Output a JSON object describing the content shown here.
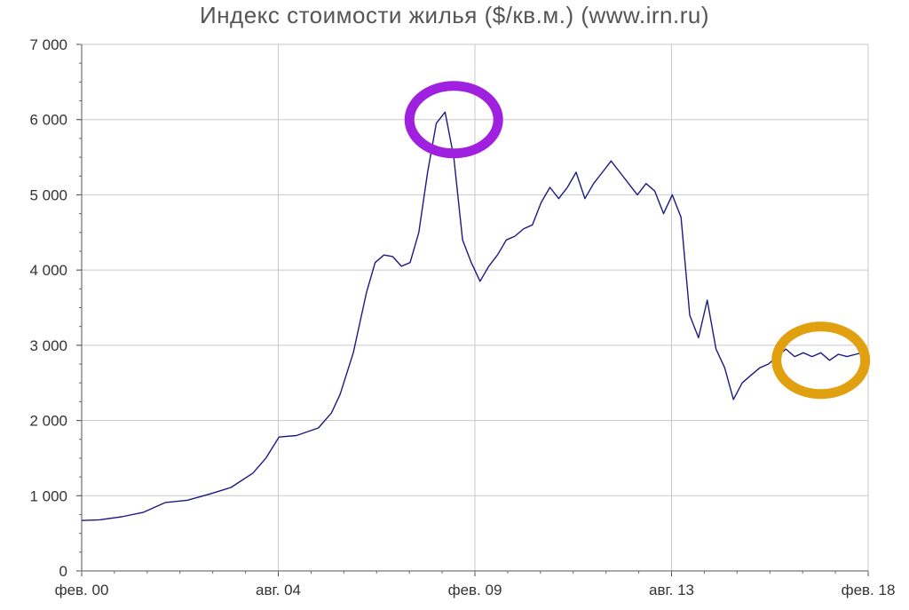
{
  "chart_data": {
    "type": "line",
    "title": "Индекс стоимости жилья ($/кв.м.) (www.irn.ru)",
    "xlabel": "",
    "ylabel": "",
    "ylim": [
      0,
      7000
    ],
    "y_ticks": [
      0,
      1000,
      2000,
      3000,
      4000,
      5000,
      6000,
      7000
    ],
    "y_tick_labels": [
      "0",
      "1 000",
      "2 000",
      "3 000",
      "4 000",
      "5 000",
      "6 000",
      "7 000"
    ],
    "x_ticks": [
      2000.083,
      2004.583,
      2009.083,
      2013.583,
      2018.083
    ],
    "x_tick_labels": [
      "фев. 00",
      "авг. 04",
      "фев. 09",
      "авг. 13",
      "фев. 18"
    ],
    "xlim": [
      2000.083,
      2018.083
    ],
    "grid": true,
    "line_color": "#1a1a80",
    "series": [
      {
        "x": [
          2000.08,
          2000.5,
          2001.0,
          2001.5,
          2002.0,
          2002.5,
          2003.0,
          2003.5,
          2004.0,
          2004.3,
          2004.6,
          2005.0,
          2005.5,
          2005.8,
          2006.0,
          2006.3,
          2006.6,
          2006.8,
          2007.0,
          2007.2,
          2007.4,
          2007.6,
          2007.8,
          2008.0,
          2008.2,
          2008.4,
          2008.6,
          2008.8,
          2009.0,
          2009.2,
          2009.4,
          2009.6,
          2009.8,
          2010.0,
          2010.2,
          2010.4,
          2010.6,
          2010.8,
          2011.0,
          2011.2,
          2011.4,
          2011.6,
          2011.8,
          2012.0,
          2012.2,
          2012.4,
          2012.6,
          2012.8,
          2013.0,
          2013.2,
          2013.4,
          2013.6,
          2013.8,
          2014.0,
          2014.2,
          2014.4,
          2014.6,
          2014.8,
          2015.0,
          2015.2,
          2015.4,
          2015.6,
          2015.8,
          2016.0,
          2016.2,
          2016.4,
          2016.6,
          2016.8,
          2017.0,
          2017.2,
          2017.4,
          2017.6,
          2017.8,
          2018.08
        ],
        "values": [
          670,
          680,
          720,
          780,
          910,
          940,
          1020,
          1110,
          1300,
          1500,
          1780,
          1800,
          1900,
          2100,
          2350,
          2900,
          3700,
          4100,
          4200,
          4180,
          4050,
          4100,
          4500,
          5300,
          5950,
          6100,
          5500,
          4400,
          4100,
          3850,
          4050,
          4200,
          4400,
          4450,
          4550,
          4600,
          4900,
          5100,
          4950,
          5100,
          5300,
          4950,
          5150,
          5300,
          5450,
          5300,
          5150,
          5000,
          5150,
          5050,
          4750,
          5000,
          4700,
          3400,
          3100,
          3600,
          2950,
          2700,
          2280,
          2500,
          2600,
          2700,
          2750,
          2850,
          2950,
          2850,
          2900,
          2850,
          2900,
          2800,
          2880,
          2850,
          2880,
          2920
        ]
      }
    ],
    "annotations": [
      {
        "type": "circle",
        "color": "#a020e0",
        "center_x": 2008.6,
        "center_y": 6000
      },
      {
        "type": "circle",
        "color": "#e0a010",
        "center_x": 2017.0,
        "center_y": 2800
      }
    ]
  }
}
